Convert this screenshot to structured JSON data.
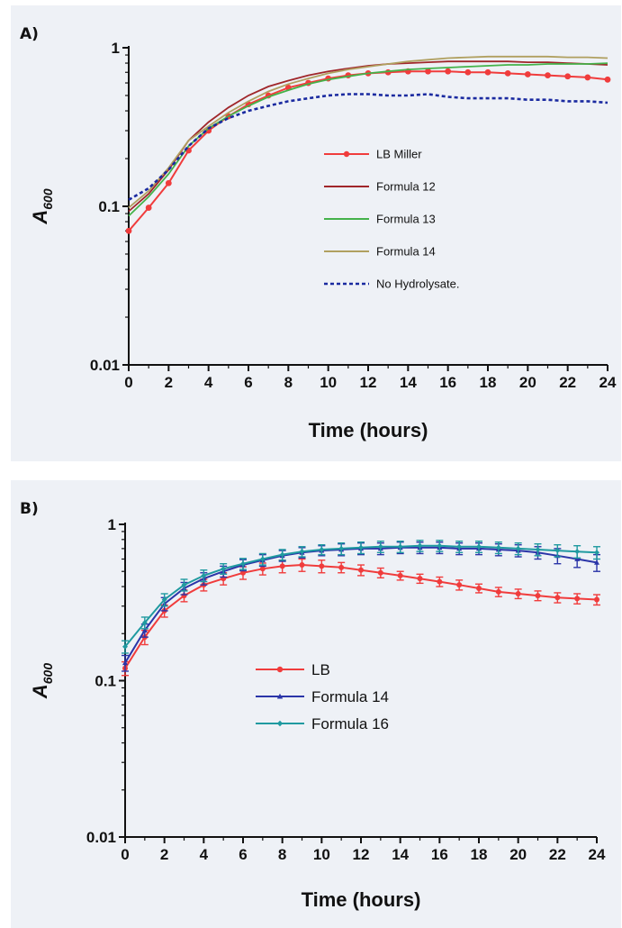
{
  "colors": {
    "panel_bg": "#eef1f6",
    "lb": "#f03c3c",
    "formula12": "#a0262a",
    "formula13": "#44b24a",
    "formula14_a": "#b0a060",
    "formula14_b": "#2b35a8",
    "formula16": "#1f9aa0",
    "no_hydrolysate": "#1a2aa0"
  },
  "chart_data": [
    {
      "panel_label": "A)",
      "type": "line",
      "xlabel": "Time (hours)",
      "ylabel": "A600",
      "ylabel_main": "A",
      "ylabel_sub": "600",
      "yscale": "log",
      "xlim": [
        0,
        24
      ],
      "ylim": [
        0.01,
        1
      ],
      "xticks": [
        0,
        2,
        4,
        6,
        8,
        10,
        12,
        14,
        16,
        18,
        20,
        22,
        24
      ],
      "yticks": [
        {
          "value": 0.01,
          "label": "0.01"
        },
        {
          "value": 0.1,
          "label": "0.1"
        },
        {
          "value": 1,
          "label": "1"
        }
      ],
      "legend_position": "center-right",
      "series": [
        {
          "name": "LB Miller",
          "color_key": "lb",
          "style": "line-markers",
          "x": [
            0,
            1,
            2,
            3,
            4,
            5,
            6,
            7,
            8,
            9,
            10,
            11,
            12,
            13,
            14,
            15,
            16,
            17,
            18,
            19,
            20,
            21,
            22,
            23,
            24
          ],
          "y": [
            0.07,
            0.098,
            0.14,
            0.225,
            0.3,
            0.37,
            0.44,
            0.5,
            0.56,
            0.6,
            0.64,
            0.67,
            0.69,
            0.7,
            0.71,
            0.71,
            0.71,
            0.7,
            0.7,
            0.69,
            0.68,
            0.67,
            0.66,
            0.65,
            0.63
          ]
        },
        {
          "name": "Formula 12",
          "color_key": "formula12",
          "style": "line",
          "x": [
            0,
            1,
            2,
            3,
            4,
            5,
            6,
            7,
            8,
            9,
            10,
            11,
            12,
            13,
            14,
            15,
            16,
            17,
            18,
            19,
            20,
            21,
            22,
            23,
            24
          ],
          "y": [
            0.093,
            0.12,
            0.17,
            0.26,
            0.34,
            0.42,
            0.5,
            0.57,
            0.62,
            0.67,
            0.71,
            0.74,
            0.77,
            0.79,
            0.8,
            0.81,
            0.82,
            0.82,
            0.82,
            0.82,
            0.81,
            0.81,
            0.8,
            0.79,
            0.78
          ]
        },
        {
          "name": "Formula 13",
          "color_key": "formula13",
          "style": "line",
          "x": [
            0,
            1,
            2,
            3,
            4,
            5,
            6,
            7,
            8,
            9,
            10,
            11,
            12,
            13,
            14,
            15,
            16,
            17,
            18,
            19,
            20,
            21,
            22,
            23,
            24
          ],
          "y": [
            0.087,
            0.115,
            0.16,
            0.24,
            0.31,
            0.37,
            0.43,
            0.49,
            0.54,
            0.59,
            0.63,
            0.66,
            0.69,
            0.71,
            0.73,
            0.74,
            0.75,
            0.76,
            0.77,
            0.78,
            0.78,
            0.79,
            0.79,
            0.79,
            0.8
          ]
        },
        {
          "name": "Formula 14",
          "color_key": "formula14_a",
          "style": "line",
          "x": [
            0,
            1,
            2,
            3,
            4,
            5,
            6,
            7,
            8,
            9,
            10,
            11,
            12,
            13,
            14,
            15,
            16,
            17,
            18,
            19,
            20,
            21,
            22,
            23,
            24
          ],
          "y": [
            0.098,
            0.125,
            0.175,
            0.26,
            0.32,
            0.39,
            0.46,
            0.53,
            0.59,
            0.64,
            0.69,
            0.73,
            0.76,
            0.79,
            0.82,
            0.84,
            0.86,
            0.87,
            0.88,
            0.88,
            0.88,
            0.88,
            0.87,
            0.87,
            0.86
          ]
        },
        {
          "name": "No Hydrolysate.",
          "color_key": "no_hydrolysate",
          "style": "dotted",
          "x": [
            0,
            1,
            2,
            3,
            4,
            5,
            6,
            7,
            8,
            9,
            10,
            11,
            12,
            13,
            14,
            15,
            16,
            17,
            18,
            19,
            20,
            21,
            22,
            23,
            24
          ],
          "y": [
            0.11,
            0.13,
            0.17,
            0.24,
            0.31,
            0.36,
            0.4,
            0.43,
            0.46,
            0.48,
            0.5,
            0.51,
            0.51,
            0.5,
            0.5,
            0.51,
            0.49,
            0.48,
            0.48,
            0.48,
            0.47,
            0.47,
            0.46,
            0.46,
            0.45
          ]
        }
      ]
    },
    {
      "panel_label": "B)",
      "type": "line",
      "xlabel": "Time (hours)",
      "ylabel": "A600",
      "ylabel_main": "A",
      "ylabel_sub": "600",
      "yscale": "log",
      "xlim": [
        0,
        24
      ],
      "ylim": [
        0.01,
        1
      ],
      "xticks": [
        0,
        2,
        4,
        6,
        8,
        10,
        12,
        14,
        16,
        18,
        20,
        22,
        24
      ],
      "yticks": [
        {
          "value": 0.01,
          "label": "0.01"
        },
        {
          "value": 0.1,
          "label": "0.1"
        },
        {
          "value": 1,
          "label": "1"
        }
      ],
      "legend_position": "center",
      "series": [
        {
          "name": "LB",
          "color_key": "lb",
          "style": "line-markers-errorbars",
          "marker": "circle",
          "x": [
            0,
            1,
            2,
            3,
            4,
            5,
            6,
            7,
            8,
            9,
            10,
            11,
            12,
            13,
            14,
            15,
            16,
            17,
            18,
            19,
            20,
            21,
            22,
            23,
            24
          ],
          "y": [
            0.12,
            0.19,
            0.28,
            0.35,
            0.41,
            0.45,
            0.49,
            0.52,
            0.54,
            0.55,
            0.54,
            0.53,
            0.51,
            0.49,
            0.47,
            0.45,
            0.43,
            0.41,
            0.39,
            0.37,
            0.36,
            0.35,
            0.34,
            0.335,
            0.33
          ],
          "err": [
            0.012,
            0.02,
            0.025,
            0.03,
            0.035,
            0.04,
            0.045,
            0.045,
            0.05,
            0.05,
            0.05,
            0.04,
            0.04,
            0.035,
            0.03,
            0.03,
            0.03,
            0.03,
            0.025,
            0.025,
            0.025,
            0.025,
            0.025,
            0.025,
            0.025
          ]
        },
        {
          "name": "Formula 14",
          "color_key": "formula14_b",
          "style": "line-markers-errorbars",
          "marker": "triangle",
          "x": [
            0,
            1,
            2,
            3,
            4,
            5,
            6,
            7,
            8,
            9,
            10,
            11,
            12,
            13,
            14,
            15,
            16,
            17,
            18,
            19,
            20,
            21,
            22,
            23,
            24
          ],
          "y": [
            0.13,
            0.21,
            0.31,
            0.39,
            0.45,
            0.5,
            0.55,
            0.59,
            0.63,
            0.66,
            0.68,
            0.69,
            0.7,
            0.7,
            0.71,
            0.71,
            0.71,
            0.7,
            0.7,
            0.69,
            0.68,
            0.66,
            0.63,
            0.6,
            0.57
          ],
          "err": [
            0.015,
            0.02,
            0.03,
            0.035,
            0.04,
            0.04,
            0.045,
            0.05,
            0.05,
            0.05,
            0.05,
            0.06,
            0.06,
            0.06,
            0.06,
            0.06,
            0.06,
            0.06,
            0.06,
            0.06,
            0.06,
            0.06,
            0.07,
            0.07,
            0.07
          ]
        },
        {
          "name": "Formula 16",
          "color_key": "formula16",
          "style": "line-markers-errorbars",
          "marker": "diamond",
          "x": [
            0,
            1,
            2,
            3,
            4,
            5,
            6,
            7,
            8,
            9,
            10,
            11,
            12,
            13,
            14,
            15,
            16,
            17,
            18,
            19,
            20,
            21,
            22,
            23,
            24
          ],
          "y": [
            0.165,
            0.235,
            0.33,
            0.41,
            0.47,
            0.52,
            0.56,
            0.6,
            0.64,
            0.67,
            0.69,
            0.7,
            0.71,
            0.72,
            0.72,
            0.73,
            0.73,
            0.72,
            0.72,
            0.71,
            0.7,
            0.69,
            0.68,
            0.67,
            0.66
          ],
          "err": [
            0.015,
            0.02,
            0.03,
            0.035,
            0.04,
            0.04,
            0.045,
            0.05,
            0.05,
            0.05,
            0.05,
            0.06,
            0.06,
            0.06,
            0.06,
            0.06,
            0.06,
            0.06,
            0.06,
            0.06,
            0.06,
            0.06,
            0.06,
            0.06,
            0.06
          ]
        }
      ]
    }
  ]
}
